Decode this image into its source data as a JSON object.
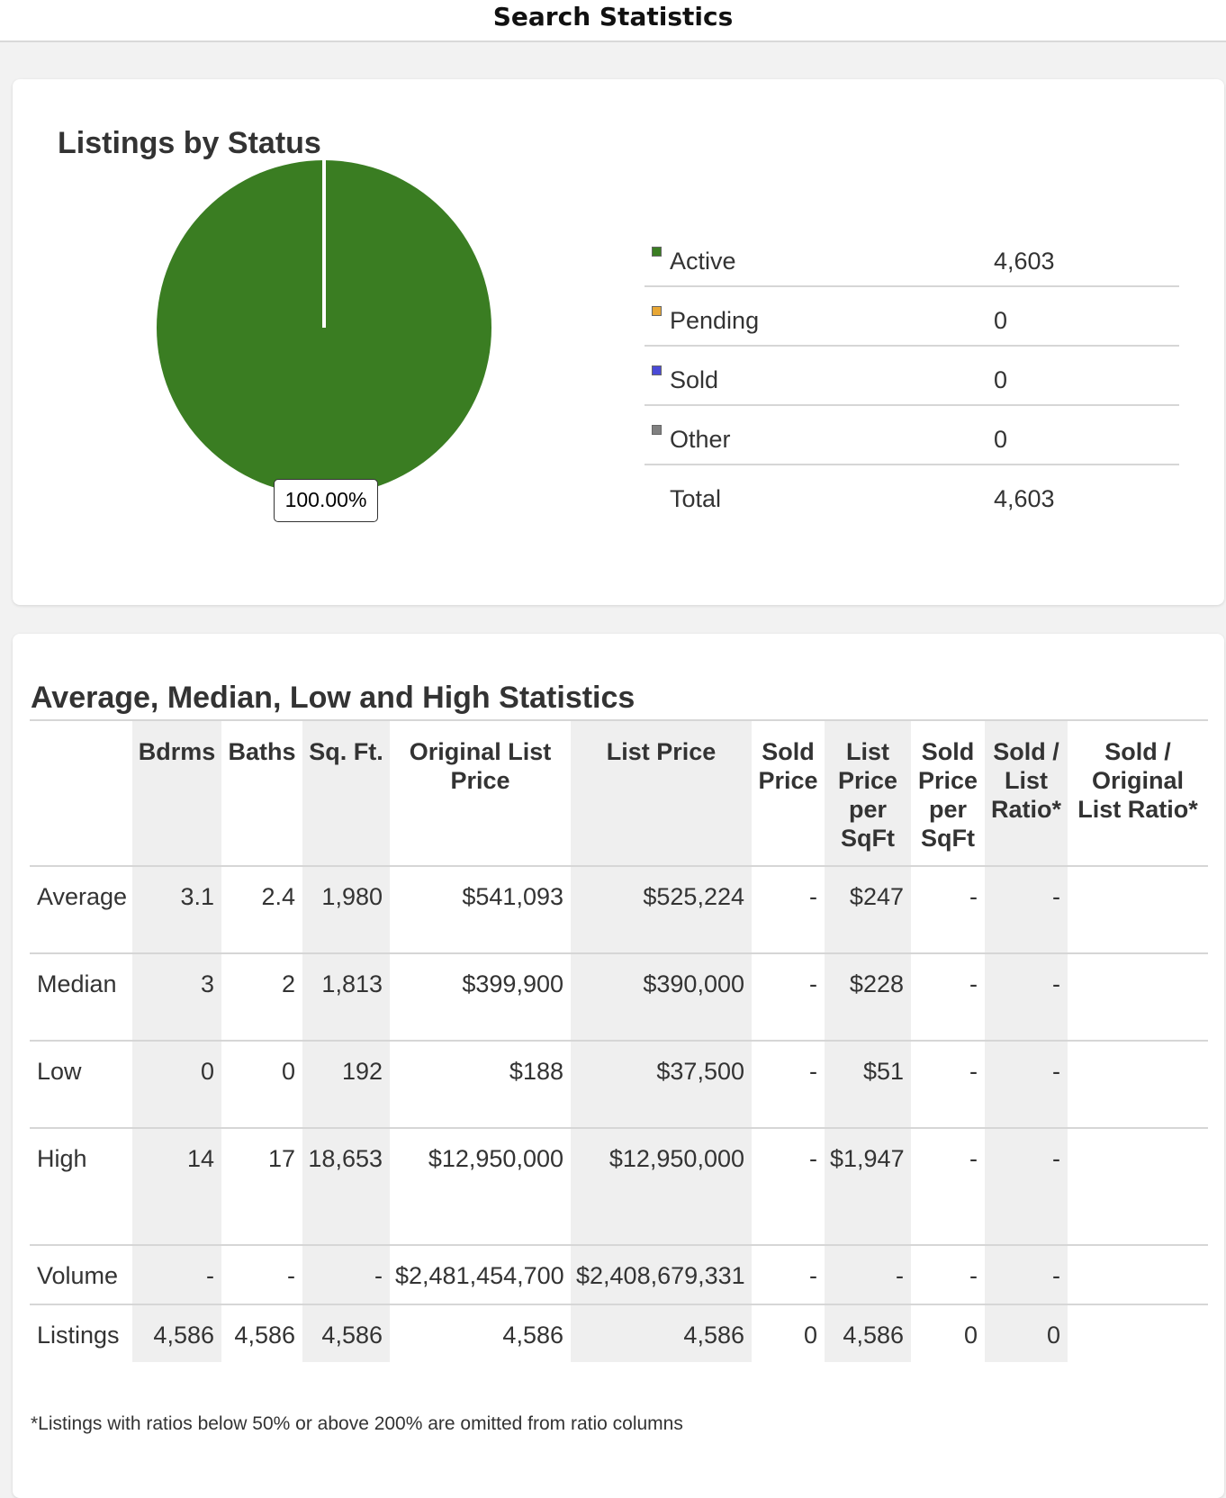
{
  "header": {
    "title": "Search Statistics"
  },
  "status_card": {
    "title": "Listings by Status",
    "pie_label": "100.00%",
    "legend": [
      {
        "label": "Active",
        "value": "4,603",
        "color": "#3a7d22"
      },
      {
        "label": "Pending",
        "value": "0",
        "color": "#e8a735"
      },
      {
        "label": "Sold",
        "value": "0",
        "color": "#4a4ad6"
      },
      {
        "label": "Other",
        "value": "0",
        "color": "#808080"
      }
    ],
    "total": {
      "label": "Total",
      "value": "4,603"
    }
  },
  "chart_data": {
    "type": "pie",
    "categories": [
      "Active",
      "Pending",
      "Sold",
      "Other"
    ],
    "values": [
      4603,
      0,
      0,
      0
    ],
    "colors": [
      "#3a7d22",
      "#e8a735",
      "#4a4ad6",
      "#808080"
    ],
    "data_labels": [
      "100.00%"
    ]
  },
  "stats_card": {
    "title": "Average, Median, Low and High Statistics",
    "columns": [
      "Bdrms",
      "Baths",
      "Sq. Ft.",
      "Original List Price",
      "List Price",
      "Sold Price",
      "List Price per SqFt",
      "Sold Price per SqFt",
      "Sold / List Ratio*",
      "Sold / Original List Ratio*"
    ],
    "rows": [
      {
        "label": "Average",
        "values": [
          "3.1",
          "2.4",
          "1,980",
          "$541,093",
          "$525,224",
          "-",
          "$247",
          "-",
          "-",
          ""
        ]
      },
      {
        "label": "Median",
        "values": [
          "3",
          "2",
          "1,813",
          "$399,900",
          "$390,000",
          "-",
          "$228",
          "-",
          "-",
          ""
        ]
      },
      {
        "label": "Low",
        "values": [
          "0",
          "0",
          "192",
          "$188",
          "$37,500",
          "-",
          "$51",
          "-",
          "-",
          ""
        ]
      },
      {
        "label": "High",
        "values": [
          "14",
          "17",
          "18,653",
          "$12,950,000",
          "$12,950,000",
          "-",
          "$1,947",
          "-",
          "-",
          ""
        ]
      },
      {
        "label": "Volume",
        "values": [
          "-",
          "-",
          "-",
          "$2,481,454,700",
          "$2,408,679,331",
          "-",
          "-",
          "-",
          "-",
          ""
        ]
      },
      {
        "label": "Listings",
        "values": [
          "4,586",
          "4,586",
          "4,586",
          "4,586",
          "4,586",
          "0",
          "4,586",
          "0",
          "0",
          ""
        ]
      }
    ],
    "footnote": "*Listings with ratios below 50% or above 200% are omitted from ratio columns"
  }
}
